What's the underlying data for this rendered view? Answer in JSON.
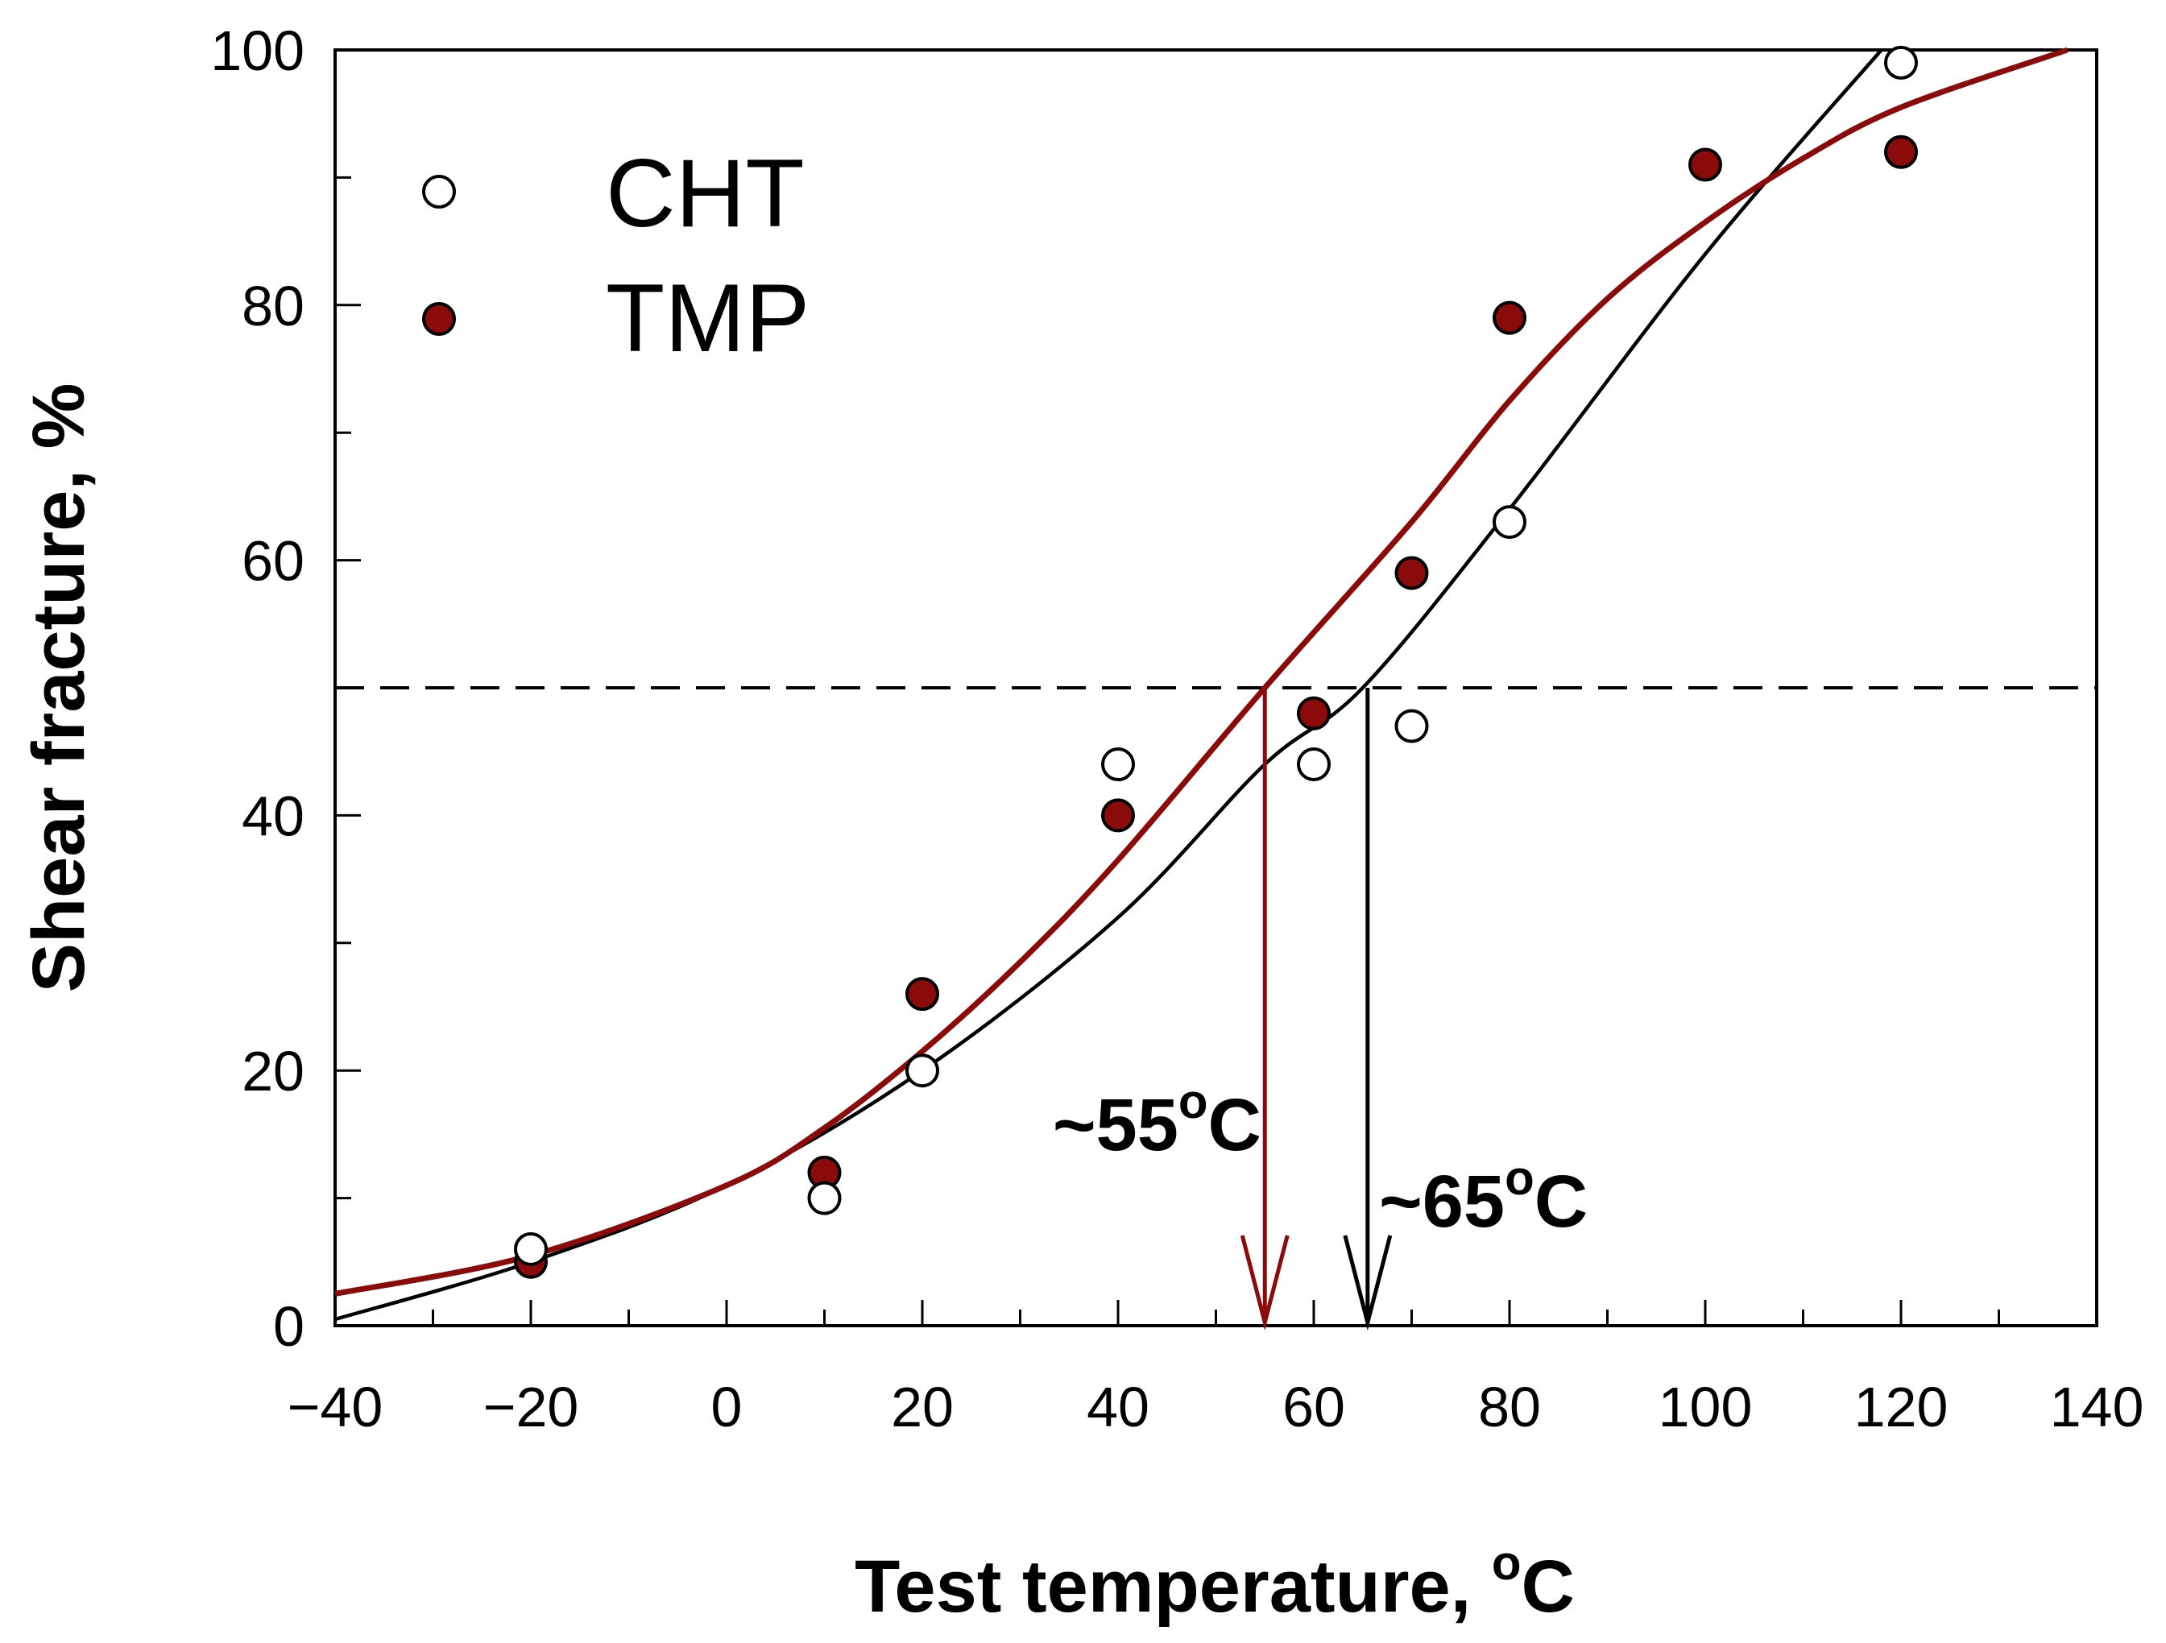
{
  "chart_data": {
    "type": "scatter",
    "xlabel": "Test temperature, ",
    "xlabel_unit_sup": "o",
    "xlabel_unit": "C",
    "ylabel": "Shear fracture, %",
    "xlim": [
      -40,
      140
    ],
    "ylim": [
      0,
      100
    ],
    "x_major_ticks": [
      -40,
      -20,
      0,
      20,
      40,
      60,
      80,
      100,
      120,
      140
    ],
    "x_tick_labels": [
      "−40",
      "−20",
      "0",
      "20",
      "40",
      "60",
      "80",
      "100",
      "120",
      "140"
    ],
    "x_minor_step": 10,
    "y_major_ticks": [
      0,
      20,
      40,
      60,
      80,
      100
    ],
    "y_tick_labels": [
      "0",
      "20",
      "40",
      "60",
      "80",
      "100"
    ],
    "y_minor_step": 10,
    "colors": {
      "cht": "#000000",
      "tmp": "#8b0a0a",
      "axis": "#000000"
    },
    "series": [
      {
        "name": "CHT",
        "marker": "open-circle",
        "x": [
          -20,
          10,
          20,
          40,
          60,
          70,
          80,
          120
        ],
        "y": [
          6,
          10,
          20,
          44,
          44,
          47,
          63,
          99
        ],
        "fit": {
          "x": [
            -40,
            -20,
            0,
            20,
            40,
            55,
            65,
            80,
            100,
            118
          ],
          "y": [
            0.5,
            5,
            11,
            20,
            32,
            44,
            50,
            64,
            84,
            100
          ]
        }
      },
      {
        "name": "TMP",
        "marker": "filled-circle",
        "x": [
          -20,
          10,
          20,
          40,
          60,
          70,
          80,
          100,
          120
        ],
        "y": [
          5,
          12,
          26,
          40,
          48,
          59,
          79,
          91,
          92
        ],
        "fit": {
          "x": [
            -40,
            -20,
            0,
            10,
            20,
            30,
            40,
            55,
            70,
            80,
            90,
            100,
            110,
            120,
            137
          ],
          "y": [
            2.5,
            5.5,
            11,
            15.5,
            21.5,
            28.5,
            36.5,
            50,
            63,
            72.5,
            80.5,
            86.5,
            91.5,
            95.5,
            100
          ]
        }
      }
    ],
    "threshold": {
      "y": 50,
      "style": "dashed"
    },
    "annotations": [
      {
        "series": "TMP",
        "x": 55,
        "label_prefix": "~55",
        "label_sup": "o",
        "label_suffix": "C",
        "color": "#8b0a0a"
      },
      {
        "series": "CHT",
        "x": 65.5,
        "label_prefix": "~65",
        "label_sup": "o",
        "label_suffix": "C",
        "color": "#000000"
      }
    ],
    "legend": {
      "placement": "top-left",
      "entries": [
        {
          "label": "CHT",
          "marker": "open-circle"
        },
        {
          "label": "TMP",
          "marker": "filled-circle"
        }
      ]
    }
  }
}
